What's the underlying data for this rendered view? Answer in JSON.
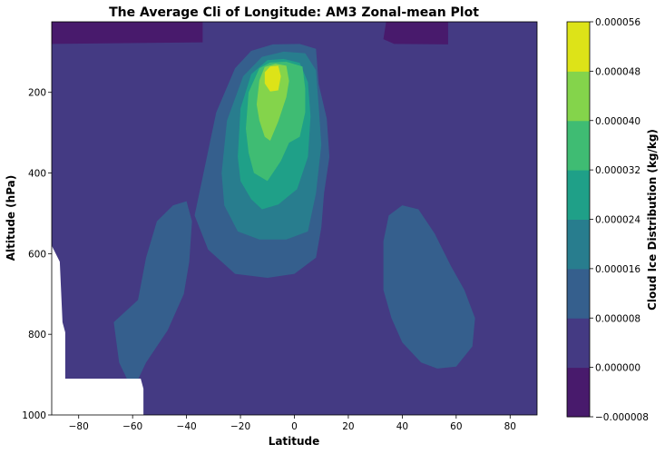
{
  "chart_data": {
    "type": "contour",
    "title": "The Average Cli of Longitude: AM3 Zonal-mean Plot",
    "xlabel": "Latitude",
    "ylabel": "Altitude (hPa)",
    "xlim": [
      -90,
      90
    ],
    "ylim": [
      1000,
      25
    ],
    "y_inverted": true,
    "x_ticks": [
      -80,
      -60,
      -40,
      -20,
      0,
      20,
      40,
      60,
      80
    ],
    "x_tick_labels": [
      "−80",
      "−60",
      "−40",
      "−20",
      "0",
      "20",
      "40",
      "60",
      "80"
    ],
    "y_ticks": [
      200,
      400,
      600,
      800,
      1000
    ],
    "y_tick_labels": [
      "200",
      "400",
      "600",
      "800",
      "1000"
    ],
    "colorbar": {
      "label": "Cloud Ice Distribution (kg/kg)",
      "levels": [
        -8e-06,
        0.0,
        8e-06,
        1.6e-05,
        2.4e-05,
        3.2e-05,
        4e-05,
        4.8e-05,
        5.6e-05
      ],
      "tick_labels": [
        "−0.000008",
        "0.000000",
        "0.000008",
        "0.000016",
        "0.000024",
        "0.000032",
        "0.000040",
        "0.000048",
        "0.000056"
      ],
      "colors": [
        "#481a6c",
        "#443a83",
        "#355f8d",
        "#287d8e",
        "#1fa088",
        "#3fbc73",
        "#84d44b",
        "#dde318"
      ],
      "position": "right"
    },
    "regions": [
      {
        "level_index": 0,
        "polygon": [
          [
            -90,
            25
          ],
          [
            -34,
            25
          ],
          [
            -34,
            76
          ],
          [
            -90,
            80
          ]
        ]
      },
      {
        "level_index": 0,
        "polygon": [
          [
            34,
            25
          ],
          [
            57,
            25
          ],
          [
            57,
            81
          ],
          [
            37,
            80
          ],
          [
            33,
            68
          ]
        ]
      },
      {
        "level_index": 2,
        "polygon": [
          [
            -37,
            505
          ],
          [
            -34,
            410
          ],
          [
            -29,
            250
          ],
          [
            -22,
            140
          ],
          [
            -16,
            97
          ],
          [
            -8,
            81
          ],
          [
            2,
            80
          ],
          [
            8,
            92
          ],
          [
            9,
            180
          ],
          [
            12,
            265
          ],
          [
            13,
            360
          ],
          [
            11,
            450
          ],
          [
            10,
            535
          ],
          [
            8,
            610
          ],
          [
            0,
            650
          ],
          [
            -10,
            660
          ],
          [
            -22,
            650
          ],
          [
            -32,
            590
          ]
        ]
      },
      {
        "level_index": 2,
        "polygon": [
          [
            -58,
            715
          ],
          [
            -55,
            610
          ],
          [
            -51,
            520
          ],
          [
            -45,
            480
          ],
          [
            -40,
            470
          ],
          [
            -38,
            520
          ],
          [
            -39,
            620
          ],
          [
            -41,
            700
          ],
          [
            -47,
            790
          ],
          [
            -55,
            870
          ],
          [
            -60,
            940
          ],
          [
            -65,
            870
          ],
          [
            -67,
            770
          ]
        ]
      },
      {
        "level_index": 2,
        "polygon": [
          [
            33,
            570
          ],
          [
            35,
            505
          ],
          [
            40,
            480
          ],
          [
            46,
            490
          ],
          [
            52,
            550
          ],
          [
            58,
            630
          ],
          [
            63,
            690
          ],
          [
            67,
            760
          ],
          [
            66,
            830
          ],
          [
            60,
            880
          ],
          [
            53,
            885
          ],
          [
            47,
            870
          ],
          [
            40,
            820
          ],
          [
            36,
            760
          ],
          [
            33,
            690
          ]
        ]
      },
      {
        "level_index": 3,
        "polygon": [
          [
            -27,
            400
          ],
          [
            -25,
            270
          ],
          [
            -19,
            160
          ],
          [
            -12,
            112
          ],
          [
            -4,
            99
          ],
          [
            4,
            103
          ],
          [
            8,
            145
          ],
          [
            9,
            235
          ],
          [
            10,
            330
          ],
          [
            8,
            450
          ],
          [
            5,
            545
          ],
          [
            -3,
            565
          ],
          [
            -13,
            565
          ],
          [
            -21,
            545
          ],
          [
            -26,
            480
          ]
        ]
      },
      {
        "level_index": 4,
        "polygon": [
          [
            -21,
            360
          ],
          [
            -20,
            240
          ],
          [
            -16,
            155
          ],
          [
            -10,
            120
          ],
          [
            -4,
            117
          ],
          [
            2,
            127
          ],
          [
            5,
            175
          ],
          [
            6,
            260
          ],
          [
            5,
            360
          ],
          [
            1,
            440
          ],
          [
            -6,
            478
          ],
          [
            -12,
            490
          ],
          [
            -16,
            465
          ],
          [
            -20,
            420
          ]
        ]
      },
      {
        "level_index": 5,
        "polygon": [
          [
            -18,
            290
          ],
          [
            -17,
            200
          ],
          [
            -13,
            140
          ],
          [
            -9,
            126
          ],
          [
            -3,
            124
          ],
          [
            3,
            136
          ],
          [
            4,
            190
          ],
          [
            4,
            250
          ],
          [
            2,
            310
          ],
          [
            -2,
            325
          ],
          [
            -5,
            370
          ],
          [
            -10,
            420
          ],
          [
            -15,
            400
          ],
          [
            -17,
            350
          ]
        ]
      },
      {
        "level_index": 6,
        "polygon": [
          [
            -14,
            230
          ],
          [
            -13,
            170
          ],
          [
            -11,
            137
          ],
          [
            -7,
            129
          ],
          [
            -3,
            134
          ],
          [
            -2,
            172
          ],
          [
            -3,
            212
          ],
          [
            -6,
            272
          ],
          [
            -9,
            320
          ],
          [
            -11,
            310
          ],
          [
            -13,
            270
          ]
        ]
      },
      {
        "level_index": 7,
        "polygon": [
          [
            -11,
            150
          ],
          [
            -9,
            136
          ],
          [
            -6,
            134
          ],
          [
            -5,
            160
          ],
          [
            -6,
            195
          ],
          [
            -9,
            198
          ],
          [
            -11,
            178
          ]
        ]
      }
    ],
    "missing_regions": [
      {
        "polygon": [
          [
            -90,
            580
          ],
          [
            -87,
            620
          ],
          [
            -86,
            770
          ],
          [
            -85,
            795
          ],
          [
            -85,
            910
          ],
          [
            -57,
            910
          ],
          [
            -56,
            935
          ],
          [
            -56,
            1000
          ],
          [
            -90,
            1000
          ]
        ]
      }
    ]
  }
}
